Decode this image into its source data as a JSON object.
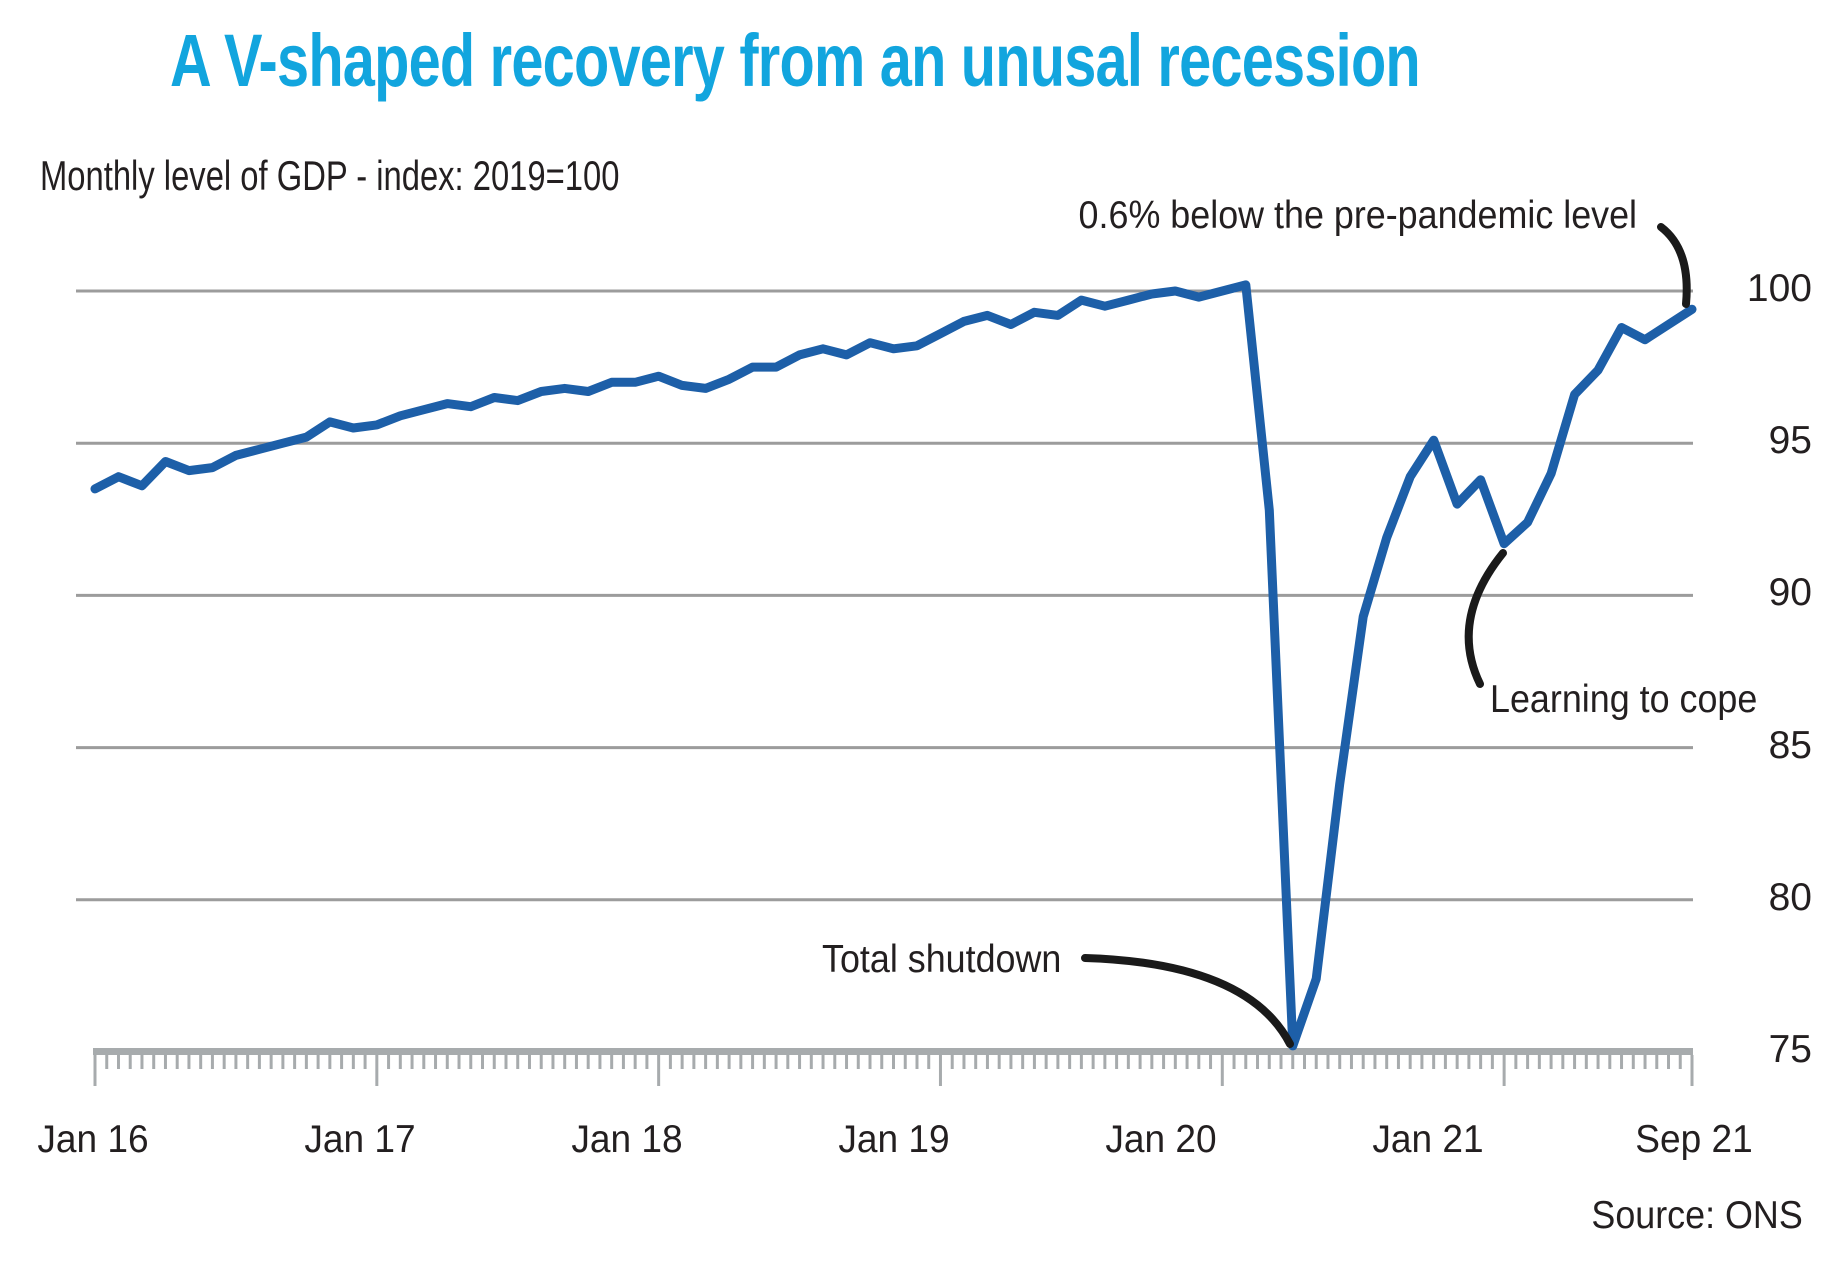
{
  "title": "A V-shaped recovery from an unusal recession",
  "subtitle": "Monthly level of GDP - index: 2019=100",
  "source": "Source: ONS",
  "annotations": {
    "pre_pandemic": "0.6% below the pre-pandemic level",
    "total_shutdown": "Total shutdown",
    "learning_to_cope": "Learning to cope"
  },
  "y_axis": {
    "labels": [
      "100",
      "95",
      "90",
      "85",
      "80",
      "75"
    ],
    "values": [
      100,
      95,
      90,
      85,
      80,
      75
    ]
  },
  "x_axis": {
    "labels": [
      "Jan 16",
      "Jan 17",
      "Jan 18",
      "Jan 19",
      "Jan 20",
      "Jan 21",
      "Sep 21"
    ]
  },
  "colors": {
    "title": "#12a5de",
    "line": "#1d5fa8",
    "grid": "#9c9c9c",
    "axis": "#a7abad",
    "connector": "#1a1a1a",
    "text": "#231f20"
  },
  "chart_data": {
    "type": "line",
    "title": "A V-shaped recovery from an unusal recession",
    "subtitle": "Monthly level of GDP - index: 2019=100",
    "series_name": "Monthly level of GDP (index: 2019=100)",
    "frequency": "monthly",
    "xlabel": "",
    "ylabel": "GDP index (2019=100)",
    "ylim": [
      75,
      102
    ],
    "gridlines": [
      100,
      95,
      90,
      85,
      80,
      75
    ],
    "grid": "horizontal-only",
    "legend": "none",
    "source": "ONS",
    "months": [
      "Jan 2016",
      "Feb 2016",
      "Mar 2016",
      "Apr 2016",
      "May 2016",
      "Jun 2016",
      "Jul 2016",
      "Aug 2016",
      "Sep 2016",
      "Oct 2016",
      "Nov 2016",
      "Dec 2016",
      "Jan 2017",
      "Feb 2017",
      "Mar 2017",
      "Apr 2017",
      "May 2017",
      "Jun 2017",
      "Jul 2017",
      "Aug 2017",
      "Sep 2017",
      "Oct 2017",
      "Nov 2017",
      "Dec 2017",
      "Jan 2018",
      "Feb 2018",
      "Mar 2018",
      "Apr 2018",
      "May 2018",
      "Jun 2018",
      "Jul 2018",
      "Aug 2018",
      "Sep 2018",
      "Oct 2018",
      "Nov 2018",
      "Dec 2018",
      "Jan 2019",
      "Feb 2019",
      "Mar 2019",
      "Apr 2019",
      "May 2019",
      "Jun 2019",
      "Jul 2019",
      "Aug 2019",
      "Sep 2019",
      "Oct 2019",
      "Nov 2019",
      "Dec 2019",
      "Jan 2020",
      "Feb 2020",
      "Mar 2020",
      "Apr 2020",
      "May 2020",
      "Jun 2020",
      "Jul 2020",
      "Aug 2020",
      "Sep 2020",
      "Oct 2020",
      "Nov 2020",
      "Dec 2020",
      "Jan 2021",
      "Feb 2021",
      "Mar 2021",
      "Apr 2021",
      "May 2021",
      "Jun 2021",
      "Jul 2021",
      "Aug 2021",
      "Sep 2021"
    ],
    "values": [
      93.5,
      93.9,
      93.6,
      94.4,
      94.1,
      94.2,
      94.6,
      94.8,
      95.0,
      95.2,
      95.7,
      95.5,
      95.6,
      95.9,
      96.1,
      96.3,
      96.2,
      96.5,
      96.4,
      96.7,
      96.8,
      96.7,
      97.0,
      97.0,
      97.2,
      96.9,
      96.8,
      97.1,
      97.5,
      97.5,
      97.9,
      98.1,
      97.9,
      98.3,
      98.1,
      98.2,
      98.6,
      99.0,
      99.2,
      98.9,
      99.3,
      99.2,
      99.7,
      99.5,
      99.7,
      99.9,
      100.0,
      99.8,
      100.0,
      100.2,
      92.8,
      75.2,
      77.4,
      83.8,
      89.3,
      91.9,
      93.9,
      95.1,
      93.0,
      93.8,
      91.7,
      92.4,
      94.0,
      96.6,
      97.4,
      98.8,
      98.4,
      98.9,
      99.4
    ],
    "annotated_points": [
      {
        "month": "Apr 2020",
        "value": 75.2,
        "label": "Total shutdown"
      },
      {
        "month": "Jan 2021",
        "value": 91.7,
        "label": "Learning to cope"
      },
      {
        "month": "Sep 2021",
        "value": 99.4,
        "label": "0.6% below the pre-pandemic level"
      }
    ]
  }
}
